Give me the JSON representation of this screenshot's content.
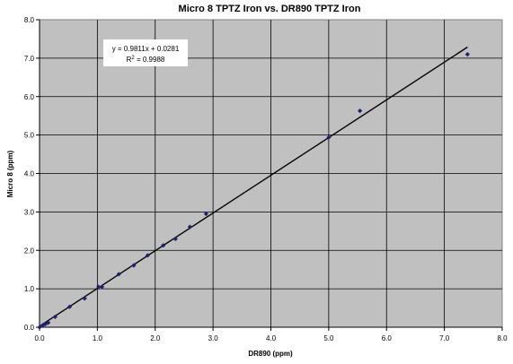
{
  "chart_data": {
    "type": "scatter",
    "title": "Micro 8 TPTZ Iron vs. DR890 TPTZ Iron",
    "xlabel": "DR890 (ppm)",
    "ylabel": "Micro 8 (ppm)",
    "xlim": [
      0,
      8
    ],
    "ylim": [
      0,
      8
    ],
    "xticks": [
      "0.0",
      "1.0",
      "2.0",
      "3.0",
      "4.0",
      "5.0",
      "6.0",
      "7.0",
      "8.0"
    ],
    "yticks": [
      "0.0",
      "1.0",
      "2.0",
      "3.0",
      "4.0",
      "5.0",
      "6.0",
      "7.0",
      "8.0"
    ],
    "grid": true,
    "colors": {
      "plot_bg": "#c0c0c0",
      "grid": "#000000",
      "marker": "#1f1f7a",
      "trendline": "#000000"
    },
    "series": [
      {
        "marker": "diamond",
        "points": [
          {
            "x": 0.0,
            "y": 0.0
          },
          {
            "x": 0.05,
            "y": 0.04
          },
          {
            "x": 0.1,
            "y": 0.08
          },
          {
            "x": 0.15,
            "y": 0.12
          },
          {
            "x": 0.27,
            "y": 0.27
          },
          {
            "x": 0.52,
            "y": 0.53
          },
          {
            "x": 0.78,
            "y": 0.75
          },
          {
            "x": 1.02,
            "y": 1.05
          },
          {
            "x": 1.08,
            "y": 1.05
          },
          {
            "x": 1.37,
            "y": 1.38
          },
          {
            "x": 1.63,
            "y": 1.61
          },
          {
            "x": 1.87,
            "y": 1.87
          },
          {
            "x": 2.14,
            "y": 2.13
          },
          {
            "x": 2.35,
            "y": 2.3
          },
          {
            "x": 2.6,
            "y": 2.61
          },
          {
            "x": 2.88,
            "y": 2.95
          },
          {
            "x": 5.0,
            "y": 4.94
          },
          {
            "x": 5.54,
            "y": 5.63
          },
          {
            "x": 7.4,
            "y": 7.1
          }
        ]
      }
    ],
    "trendline": {
      "type": "linear",
      "slope": 0.9811,
      "intercept": 0.0281,
      "x_range": [
        0,
        7.4
      ],
      "equation": "y = 0.9811x + 0.0281",
      "r_squared_label": "R",
      "r_squared_sup": "2",
      "r_squared_value": " = 0.9988"
    }
  }
}
